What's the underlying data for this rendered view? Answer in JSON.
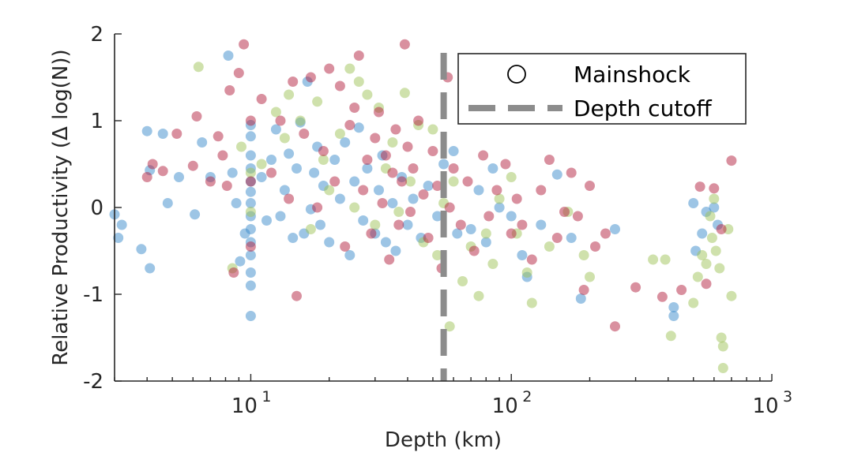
{
  "chart_data": {
    "type": "scatter",
    "title": "",
    "xlabel": "Depth (km)",
    "ylabel": "Relative Productivity (Δ log(N))",
    "x_scale": "log",
    "xlim": [
      3,
      1000
    ],
    "ylim": [
      -2,
      2
    ],
    "x_ticks": [
      {
        "base": "10",
        "exp": "1"
      },
      {
        "base": "10",
        "exp": "2"
      },
      {
        "base": "10",
        "exp": "3"
      }
    ],
    "y_ticks": [
      "2",
      "1",
      "0",
      "-1",
      "-2"
    ],
    "grid": false,
    "legend": {
      "placement": "top-right",
      "entries": [
        {
          "label": "Mainshock",
          "marker": "open-circle"
        },
        {
          "label": "Depth cutoff",
          "marker": "dashed-line"
        }
      ]
    },
    "depth_cutoff": 55,
    "colors": {
      "blue": "#3b8ccc",
      "green": "#9fc45a",
      "red": "#b3213f",
      "cutoff": "#8c8c8c"
    },
    "series": [
      {
        "color": "blue",
        "points": [
          [
            3.0,
            -0.08
          ],
          [
            3.1,
            -0.35
          ],
          [
            3.2,
            -0.2
          ],
          [
            3.8,
            -0.48
          ],
          [
            4.0,
            0.88
          ],
          [
            4.1,
            -0.7
          ],
          [
            4.1,
            0.43
          ],
          [
            4.6,
            0.85
          ],
          [
            4.8,
            0.05
          ],
          [
            5.3,
            0.35
          ],
          [
            6.1,
            -0.08
          ],
          [
            6.5,
            0.75
          ],
          [
            7.0,
            0.35
          ],
          [
            8.2,
            1.75
          ],
          [
            8.5,
            0.4
          ],
          [
            8.8,
            0.05
          ],
          [
            9.1,
            -0.62
          ],
          [
            9.5,
            -0.3
          ],
          [
            10,
            -1.25
          ],
          [
            10,
            -0.9
          ],
          [
            10,
            -0.75
          ],
          [
            10,
            -0.55
          ],
          [
            10,
            -0.4
          ],
          [
            10,
            -0.25
          ],
          [
            10,
            -0.1
          ],
          [
            10,
            0.05
          ],
          [
            10,
            0.18
          ],
          [
            10,
            0.3
          ],
          [
            10,
            0.45
          ],
          [
            10,
            0.6
          ],
          [
            10,
            0.82
          ],
          [
            10,
            0.95
          ],
          [
            11,
            0.35
          ],
          [
            11.5,
            -0.15
          ],
          [
            12,
            0.55
          ],
          [
            12.5,
            0.9
          ],
          [
            13,
            -0.1
          ],
          [
            13.5,
            0.2
          ],
          [
            14,
            0.62
          ],
          [
            14.5,
            -0.35
          ],
          [
            15,
            0.45
          ],
          [
            15.5,
            0.98
          ],
          [
            16,
            -0.3
          ],
          [
            16.5,
            1.45
          ],
          [
            17,
            -0.02
          ],
          [
            17.5,
            0.4
          ],
          [
            18,
            0.7
          ],
          [
            18.5,
            -0.2
          ],
          [
            19,
            0.25
          ],
          [
            20,
            -0.4
          ],
          [
            21,
            0.55
          ],
          [
            22,
            0.1
          ],
          [
            23,
            0.75
          ],
          [
            24,
            -0.55
          ],
          [
            25,
            0.3
          ],
          [
            26,
            0.92
          ],
          [
            27,
            -0.15
          ],
          [
            28,
            0.45
          ],
          [
            30,
            -0.3
          ],
          [
            31,
            0.2
          ],
          [
            32,
            0.6
          ],
          [
            33,
            -0.4
          ],
          [
            35,
            0.05
          ],
          [
            36,
            -0.5
          ],
          [
            38,
            0.35
          ],
          [
            40,
            -0.2
          ],
          [
            42,
            0.1
          ],
          [
            45,
            -0.35
          ],
          [
            48,
            0.25
          ],
          [
            52,
            -0.1
          ],
          [
            55,
            0.5
          ],
          [
            60,
            0.65
          ],
          [
            62,
            -0.3
          ],
          [
            70,
            -0.25
          ],
          [
            75,
            0.2
          ],
          [
            80,
            -0.4
          ],
          [
            85,
            0.45
          ],
          [
            90,
            0.0
          ],
          [
            100,
            -0.1
          ],
          [
            110,
            -0.55
          ],
          [
            115,
            -0.8
          ],
          [
            130,
            -0.2
          ],
          [
            150,
            0.38
          ],
          [
            170,
            -0.35
          ],
          [
            185,
            -1.05
          ],
          [
            250,
            -0.25
          ],
          [
            420,
            -1.25
          ],
          [
            420,
            -1.15
          ],
          [
            500,
            0.05
          ],
          [
            510,
            -0.5
          ],
          [
            540,
            -0.3
          ],
          [
            560,
            -0.05
          ],
          [
            600,
            0.0
          ],
          [
            620,
            -0.2
          ]
        ]
      },
      {
        "color": "green",
        "points": [
          [
            6.3,
            1.62
          ],
          [
            8.5,
            -0.7
          ],
          [
            9.2,
            0.7
          ],
          [
            10,
            0.4
          ],
          [
            10,
            -0.05
          ],
          [
            11,
            0.5
          ],
          [
            12.5,
            1.1
          ],
          [
            13.5,
            0.8
          ],
          [
            14,
            1.3
          ],
          [
            15.5,
            1.0
          ],
          [
            17,
            -0.25
          ],
          [
            18,
            1.22
          ],
          [
            19,
            0.55
          ],
          [
            20,
            0.2
          ],
          [
            22,
            0.85
          ],
          [
            24,
            1.6
          ],
          [
            25,
            0.0
          ],
          [
            26,
            1.45
          ],
          [
            28,
            1.3
          ],
          [
            30,
            -0.2
          ],
          [
            31,
            1.15
          ],
          [
            33,
            0.45
          ],
          [
            35,
            0.75
          ],
          [
            37,
            -0.05
          ],
          [
            39,
            1.32
          ],
          [
            41,
            0.3
          ],
          [
            44,
            0.95
          ],
          [
            46,
            -0.4
          ],
          [
            50,
            0.9
          ],
          [
            52,
            -0.55
          ],
          [
            55,
            0.05
          ],
          [
            58,
            -1.37
          ],
          [
            60,
            0.3
          ],
          [
            65,
            -0.85
          ],
          [
            70,
            -0.45
          ],
          [
            75,
            -1.02
          ],
          [
            80,
            -0.3
          ],
          [
            85,
            -0.65
          ],
          [
            90,
            0.1
          ],
          [
            100,
            0.35
          ],
          [
            105,
            -0.3
          ],
          [
            115,
            -0.75
          ],
          [
            120,
            -1.1
          ],
          [
            140,
            -0.45
          ],
          [
            165,
            -0.05
          ],
          [
            190,
            -0.55
          ],
          [
            200,
            -0.8
          ],
          [
            350,
            -0.6
          ],
          [
            390,
            -0.6
          ],
          [
            410,
            -1.48
          ],
          [
            500,
            -1.1
          ],
          [
            520,
            -0.8
          ],
          [
            540,
            -0.55
          ],
          [
            560,
            -0.65
          ],
          [
            580,
            -0.1
          ],
          [
            590,
            -0.35
          ],
          [
            600,
            0.1
          ],
          [
            610,
            -0.5
          ],
          [
            630,
            -0.7
          ],
          [
            640,
            -1.5
          ],
          [
            650,
            -1.6
          ],
          [
            650,
            -1.85
          ],
          [
            680,
            -0.25
          ],
          [
            700,
            -1.02
          ]
        ]
      },
      {
        "color": "red",
        "points": [
          [
            4.0,
            0.35
          ],
          [
            4.2,
            0.5
          ],
          [
            4.6,
            0.42
          ],
          [
            5.2,
            0.85
          ],
          [
            6.0,
            0.48
          ],
          [
            6.2,
            1.05
          ],
          [
            7.0,
            0.3
          ],
          [
            7.5,
            0.82
          ],
          [
            7.8,
            0.6
          ],
          [
            8.1,
            0.25
          ],
          [
            8.3,
            1.35
          ],
          [
            8.6,
            -0.75
          ],
          [
            9.0,
            1.55
          ],
          [
            9.4,
            1.88
          ],
          [
            10,
            1.0
          ],
          [
            10,
            0.3
          ],
          [
            10,
            -0.45
          ],
          [
            11,
            1.25
          ],
          [
            12,
            0.4
          ],
          [
            13,
            1.0
          ],
          [
            14,
            0.1
          ],
          [
            14.5,
            1.45
          ],
          [
            15,
            -1.02
          ],
          [
            16,
            0.85
          ],
          [
            17,
            1.5
          ],
          [
            18,
            0.0
          ],
          [
            19,
            0.65
          ],
          [
            20,
            1.6
          ],
          [
            21,
            0.3
          ],
          [
            22,
            1.4
          ],
          [
            23,
            -0.45
          ],
          [
            24,
            0.95
          ],
          [
            25,
            1.15
          ],
          [
            26,
            1.75
          ],
          [
            27,
            0.2
          ],
          [
            28,
            0.55
          ],
          [
            29,
            -0.3
          ],
          [
            30,
            0.8
          ],
          [
            31,
            1.1
          ],
          [
            32,
            0.05
          ],
          [
            33,
            0.6
          ],
          [
            34,
            -0.6
          ],
          [
            35,
            0.4
          ],
          [
            36,
            0.9
          ],
          [
            37,
            -0.2
          ],
          [
            38,
            0.3
          ],
          [
            39,
            1.88
          ],
          [
            40,
            0.7
          ],
          [
            41,
            -0.05
          ],
          [
            42,
            0.45
          ],
          [
            44,
            1.0
          ],
          [
            46,
            0.15
          ],
          [
            48,
            -0.35
          ],
          [
            50,
            0.65
          ],
          [
            52,
            0.25
          ],
          [
            54,
            -0.7
          ],
          [
            57,
            1.5
          ],
          [
            58,
            0.0
          ],
          [
            60,
            0.45
          ],
          [
            64,
            -0.2
          ],
          [
            68,
            0.3
          ],
          [
            72,
            -0.5
          ],
          [
            78,
            0.6
          ],
          [
            82,
            -0.1
          ],
          [
            88,
            0.2
          ],
          [
            95,
            0.5
          ],
          [
            100,
            -0.3
          ],
          [
            105,
            0.1
          ],
          [
            110,
            -0.2
          ],
          [
            120,
            -0.6
          ],
          [
            130,
            0.2
          ],
          [
            140,
            0.55
          ],
          [
            150,
            -0.35
          ],
          [
            160,
            -0.05
          ],
          [
            170,
            0.4
          ],
          [
            180,
            -0.1
          ],
          [
            190,
            -0.95
          ],
          [
            200,
            0.25
          ],
          [
            210,
            -0.45
          ],
          [
            230,
            -0.3
          ],
          [
            250,
            -1.37
          ],
          [
            300,
            -0.92
          ],
          [
            380,
            -1.03
          ],
          [
            450,
            -0.95
          ],
          [
            530,
            0.24
          ],
          [
            560,
            -0.88
          ],
          [
            600,
            0.22
          ],
          [
            640,
            -0.25
          ],
          [
            700,
            0.54
          ]
        ]
      }
    ]
  }
}
